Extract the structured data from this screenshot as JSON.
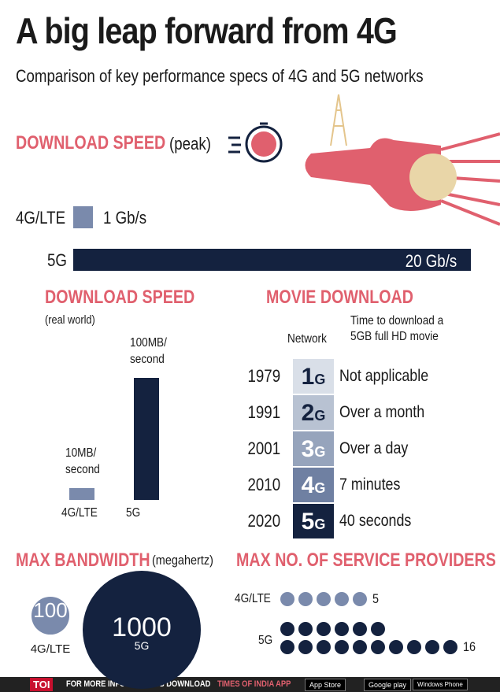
{
  "header": {
    "title": "A big leap forward from 4G",
    "subtitle": "Comparison of key performance specs of 4G and 5G networks"
  },
  "chart_data": [
    {
      "type": "hbar",
      "title": "DOWNLOAD SPEED",
      "subtitle": "(peak)",
      "categories": [
        "4G/LTE",
        "5G"
      ],
      "values": [
        1,
        20
      ],
      "value_labels": [
        "1 Gb/s",
        "20 Gb/s"
      ],
      "colors": [
        "#7a8aac",
        "#14223f"
      ],
      "xlim": [
        0,
        20
      ]
    },
    {
      "type": "bar",
      "title": "DOWNLOAD SPEED",
      "subtitle": "(real world)",
      "categories": [
        "4G/LTE",
        "5G"
      ],
      "values": [
        10,
        100
      ],
      "value_labels": [
        "10MB/ second",
        "100MB/ second"
      ],
      "colors": [
        "#7a8aac",
        "#14223f"
      ],
      "ylim": [
        0,
        100
      ]
    },
    {
      "type": "bubble",
      "title": "MAX BANDWIDTH",
      "subtitle": "(megahertz)",
      "categories": [
        "4G/LTE",
        "5G"
      ],
      "values": [
        100,
        1000
      ],
      "colors": [
        "#7a8aac",
        "#14223f"
      ]
    },
    {
      "type": "dots",
      "title": "MAX NO. OF SERVICE PROVIDERS",
      "categories": [
        "4G/LTE",
        "5G"
      ],
      "values": [
        5,
        16
      ],
      "colors": [
        "#7a8aac",
        "#14223f"
      ]
    }
  ],
  "movie": {
    "title": "MOVIE DOWNLOAD",
    "columns": [
      "Network",
      "Time to download a 5GB full HD movie"
    ],
    "rows": [
      [
        "1979",
        "1G",
        "Not applicable"
      ],
      [
        "1991",
        "2G",
        "Over a month"
      ],
      [
        "2001",
        "3G",
        "Over a day"
      ],
      [
        "2010",
        "4G",
        "7 minutes"
      ],
      [
        "2020",
        "5G",
        "40 seconds"
      ]
    ]
  },
  "footer": {
    "brand": "TOI",
    "text": "FOR MORE INFOGRAPHICS DOWNLOAD",
    "app": "TIMES OF INDIA APP",
    "badges": [
      "App Store",
      "Google play",
      "Windows Phone"
    ]
  }
}
